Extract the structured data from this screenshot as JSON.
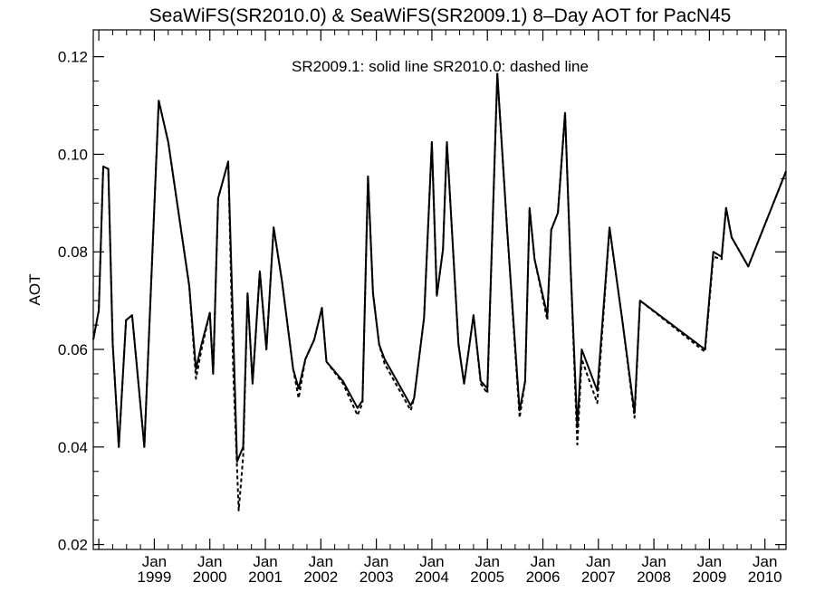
{
  "chart_data": {
    "type": "line",
    "title": "SeaWiFS(SR2010.0) & SeaWiFS(SR2009.1) 8–Day AOT for PacN45",
    "annotation": "SR2009.1: solid line   SR2010.0: dashed line",
    "ylabel": "AOT",
    "xlabel": "",
    "ylim": [
      0.019,
      0.1255
    ],
    "xlim": [
      1997.9,
      2010.38
    ],
    "yticks": [
      "0.02",
      "0.04",
      "0.06",
      "0.08",
      "0.10",
      "0.12"
    ],
    "xticks": [
      {
        "month": "Jan",
        "year": "1999",
        "x": 1999.0
      },
      {
        "month": "Jan",
        "year": "2000",
        "x": 2000.0
      },
      {
        "month": "Jan",
        "year": "2001",
        "x": 2001.0
      },
      {
        "month": "Jan",
        "year": "2002",
        "x": 2002.0
      },
      {
        "month": "Jan",
        "year": "2003",
        "x": 2003.0
      },
      {
        "month": "Jan",
        "year": "2004",
        "x": 2004.0
      },
      {
        "month": "Jan",
        "year": "2005",
        "x": 2005.0
      },
      {
        "month": "Jan",
        "year": "2006",
        "x": 2006.0
      },
      {
        "month": "Jan",
        "year": "2007",
        "x": 2007.0
      },
      {
        "month": "Jan",
        "year": "2008",
        "x": 2008.0
      },
      {
        "month": "Jan",
        "year": "2009",
        "x": 2009.0
      },
      {
        "month": "Jan",
        "year": "2010",
        "x": 2010.0
      }
    ],
    "series": [
      {
        "name": "SR2009.1",
        "style": "solid",
        "x": [
          1997.9,
          1998.0,
          1998.08,
          1998.17,
          1998.25,
          1998.36,
          1998.49,
          1998.6,
          1998.82,
          1999.08,
          1999.25,
          1999.63,
          1999.75,
          1999.85,
          2000.0,
          2000.06,
          2000.15,
          2000.33,
          2000.49,
          2000.6,
          2000.68,
          2000.77,
          2000.9,
          2001.02,
          2001.15,
          2001.3,
          2001.5,
          2001.6,
          2001.72,
          2001.88,
          2002.02,
          2002.1,
          2002.4,
          2002.66,
          2002.75,
          2002.85,
          2002.94,
          2003.05,
          2003.15,
          2003.3,
          2003.62,
          2003.68,
          2003.86,
          2004.0,
          2004.09,
          2004.2,
          2004.27,
          2004.48,
          2004.58,
          2004.75,
          2004.88,
          2005.0,
          2005.18,
          2005.35,
          2005.58,
          2005.68,
          2005.76,
          2005.85,
          2006.08,
          2006.15,
          2006.27,
          2006.4,
          2006.5,
          2006.62,
          2006.7,
          2006.98,
          2007.2,
          2007.43,
          2007.65,
          2007.75,
          2008.92,
          2009.07,
          2009.22,
          2009.3,
          2009.4,
          2009.7,
          2010.38
        ],
        "values": [
          0.062,
          0.068,
          0.0975,
          0.097,
          0.061,
          0.04,
          0.066,
          0.067,
          0.04,
          0.111,
          0.1025,
          0.073,
          0.056,
          0.061,
          0.0675,
          0.055,
          0.091,
          0.0985,
          0.037,
          0.04,
          0.0715,
          0.053,
          0.076,
          0.06,
          0.085,
          0.074,
          0.056,
          0.052,
          0.058,
          0.062,
          0.0685,
          0.0575,
          0.0535,
          0.048,
          0.0495,
          0.0955,
          0.0715,
          0.061,
          0.058,
          0.055,
          0.0485,
          0.05,
          0.0665,
          0.1025,
          0.071,
          0.0805,
          0.1025,
          0.061,
          0.053,
          0.067,
          0.0535,
          0.052,
          0.1165,
          0.0855,
          0.0475,
          0.0535,
          0.089,
          0.0785,
          0.067,
          0.0845,
          0.088,
          0.1085,
          0.0765,
          0.044,
          0.06,
          0.0515,
          0.085,
          0.066,
          0.047,
          0.07,
          0.06,
          0.08,
          0.079,
          0.089,
          0.083,
          0.077,
          0.0965
        ]
      },
      {
        "name": "SR2010.0",
        "style": "dashed",
        "x": [
          1997.9,
          1998.0,
          1998.08,
          1998.17,
          1998.25,
          1998.36,
          1998.49,
          1998.6,
          1998.82,
          1999.08,
          1999.25,
          1999.63,
          1999.75,
          1999.85,
          2000.0,
          2000.06,
          2000.15,
          2000.33,
          2000.42,
          2000.52,
          2000.6,
          2000.68,
          2000.77,
          2000.9,
          2001.02,
          2001.15,
          2001.3,
          2001.5,
          2001.6,
          2001.72,
          2001.88,
          2002.02,
          2002.1,
          2002.4,
          2002.66,
          2002.75,
          2002.85,
          2002.94,
          2003.05,
          2003.15,
          2003.3,
          2003.62,
          2003.68,
          2003.86,
          2004.0,
          2004.09,
          2004.2,
          2004.27,
          2004.48,
          2004.58,
          2004.75,
          2004.88,
          2005.0,
          2005.18,
          2005.35,
          2005.58,
          2005.68,
          2005.76,
          2005.85,
          2006.08,
          2006.15,
          2006.27,
          2006.4,
          2006.5,
          2006.62,
          2006.7,
          2006.98,
          2007.2,
          2007.43,
          2007.65,
          2007.75,
          2008.92,
          2009.07,
          2009.22,
          2009.3,
          2009.4,
          2009.7,
          2010.38
        ],
        "values": [
          0.062,
          0.068,
          0.0975,
          0.097,
          0.061,
          0.04,
          0.066,
          0.067,
          0.04,
          0.111,
          0.1025,
          0.073,
          0.054,
          0.06,
          0.0675,
          0.055,
          0.091,
          0.0985,
          0.056,
          0.027,
          0.038,
          0.0715,
          0.053,
          0.076,
          0.06,
          0.085,
          0.074,
          0.056,
          0.05,
          0.058,
          0.062,
          0.0685,
          0.0575,
          0.053,
          0.0465,
          0.049,
          0.0955,
          0.0715,
          0.061,
          0.057,
          0.054,
          0.0475,
          0.05,
          0.0665,
          0.1025,
          0.071,
          0.0805,
          0.1025,
          0.061,
          0.053,
          0.067,
          0.053,
          0.051,
          0.1165,
          0.0855,
          0.046,
          0.0535,
          0.089,
          0.0785,
          0.066,
          0.0845,
          0.088,
          0.1085,
          0.0765,
          0.0405,
          0.058,
          0.049,
          0.085,
          0.066,
          0.046,
          0.07,
          0.0595,
          0.079,
          0.0785,
          0.089,
          0.083,
          0.077,
          0.0965
        ]
      }
    ],
    "grid": false
  }
}
